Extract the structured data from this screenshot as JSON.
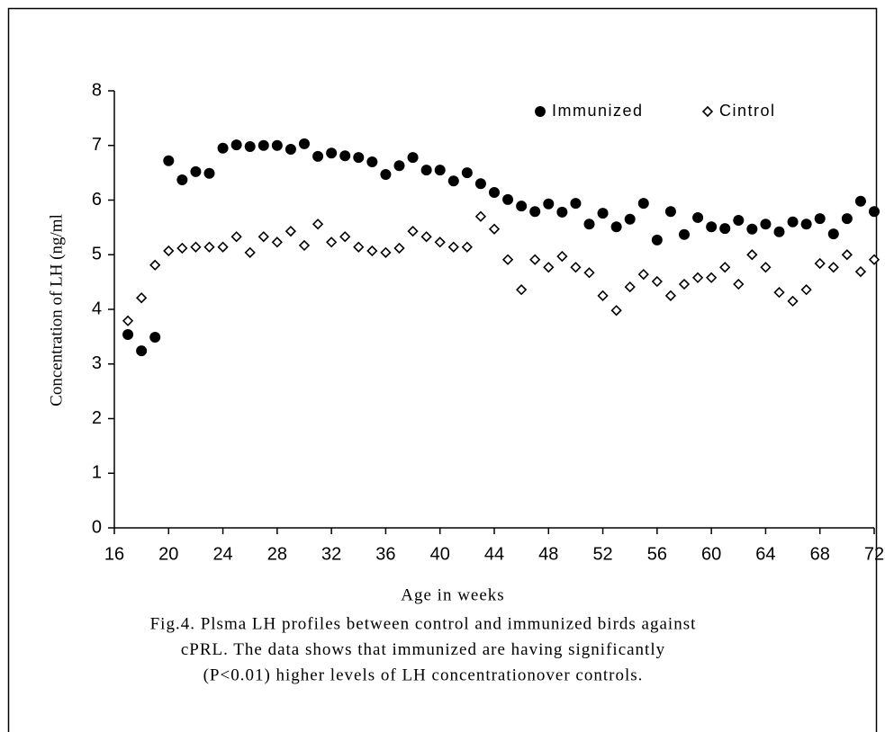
{
  "chart_data": {
    "type": "scatter",
    "x_label": "Age in weeks",
    "y_label": "Concentration of LH (ng/ml",
    "caption": [
      "Fig.4. Plsma LH profiles between control and immunized birds against",
      "cPRL. The data shows that immunized are having significantly",
      "(P<0.01) higher levels of LH concentrationover controls."
    ],
    "x": [
      17,
      18,
      19,
      20,
      21,
      22,
      23,
      24,
      25,
      26,
      27,
      28,
      29,
      30,
      31,
      32,
      33,
      34,
      35,
      36,
      37,
      38,
      39,
      40,
      41,
      42,
      43,
      44,
      45,
      46,
      47,
      48,
      49,
      50,
      51,
      52,
      53,
      54,
      55,
      56,
      57,
      58,
      59,
      60,
      61,
      62,
      63,
      64,
      65,
      66,
      67,
      68,
      69,
      70,
      71,
      72
    ],
    "series": [
      {
        "name": "Immunized",
        "color": "#000000",
        "marker": "circle",
        "values": [
          3.54,
          3.24,
          3.49,
          6.72,
          6.37,
          6.52,
          6.49,
          6.95,
          7.01,
          6.98,
          7.0,
          7.0,
          6.93,
          7.03,
          6.8,
          6.86,
          6.81,
          6.78,
          6.7,
          6.47,
          6.63,
          6.78,
          6.55,
          6.55,
          6.35,
          6.5,
          6.3,
          6.14,
          6.01,
          5.89,
          5.79,
          5.93,
          5.78,
          5.94,
          5.56,
          5.76,
          5.51,
          5.65,
          5.94,
          5.27,
          5.79,
          5.37,
          5.68,
          5.51,
          5.48,
          5.63,
          5.47,
          5.56,
          5.42,
          5.6,
          5.56,
          5.66,
          5.38,
          5.66,
          5.98,
          5.79
        ]
      },
      {
        "name": "Cintrol",
        "color": "#000000",
        "marker": "diamond",
        "values": [
          3.79,
          4.21,
          4.81,
          5.07,
          5.12,
          5.14,
          5.14,
          5.14,
          5.33,
          5.04,
          5.33,
          5.23,
          5.43,
          5.17,
          5.56,
          5.23,
          5.33,
          5.14,
          5.07,
          5.04,
          5.12,
          5.43,
          5.33,
          5.23,
          5.14,
          5.14,
          5.7,
          5.47,
          4.91,
          4.36,
          4.91,
          4.77,
          4.97,
          4.77,
          4.67,
          4.25,
          3.98,
          4.41,
          4.64,
          4.51,
          4.25,
          4.46,
          4.58,
          4.58,
          4.77,
          4.46,
          5.0,
          4.77,
          4.31,
          4.15,
          4.36,
          4.84,
          4.77,
          5.0,
          4.69,
          4.91
        ]
      }
    ],
    "xlim": [
      16,
      72
    ],
    "xticks": [
      16,
      20,
      24,
      28,
      32,
      36,
      40,
      44,
      48,
      52,
      56,
      60,
      64,
      68,
      72
    ],
    "ylim": [
      0,
      8
    ],
    "yticks": [
      0,
      1,
      2,
      3,
      4,
      5,
      6,
      7,
      8
    ],
    "grid": false,
    "legend": "top-right"
  }
}
